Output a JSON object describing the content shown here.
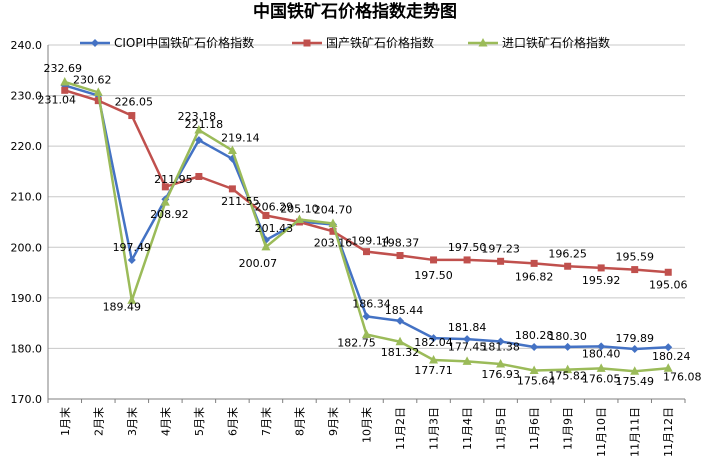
{
  "chart_data": {
    "type": "line",
    "title": "中国铁矿石价格指数走势图",
    "xlabel": "",
    "ylabel": "",
    "ylim": [
      170,
      240
    ],
    "yticks": [
      "170.0",
      "180.0",
      "190.0",
      "200.0",
      "210.0",
      "220.0",
      "230.0",
      "240.0"
    ],
    "grid": "horizontal",
    "legend_position": "top",
    "categories": [
      "1月末",
      "2月末",
      "3月末",
      "4月末",
      "5月末",
      "6月末",
      "7月末",
      "8月末",
      "9月末",
      "10月末",
      "11月2日",
      "11月3日",
      "11月4日",
      "11月5日",
      "11月6日",
      "11月9日",
      "11月10日",
      "11月11日",
      "11月12日"
    ],
    "series": [
      {
        "name": "CIOPI中国铁矿石价格指数",
        "color": "#4472C4",
        "marker": "diamond",
        "values": [
          232.0,
          230.0,
          197.49,
          209.5,
          221.18,
          217.5,
          201.43,
          205.1,
          204.5,
          186.34,
          185.44,
          182.04,
          181.84,
          181.38,
          180.28,
          180.3,
          180.4,
          179.89,
          180.24
        ],
        "labels": [
          "",
          "",
          "197.49",
          "",
          "221.18",
          "",
          "201.43",
          "205.10",
          "",
          "186.34",
          "185.44",
          "182.04",
          "181.84",
          "181.38",
          "180.28",
          "180.30",
          "180.40",
          "179.89",
          "180.24"
        ]
      },
      {
        "name": "国产铁矿石价格指数",
        "color": "#C0504D",
        "marker": "square",
        "values": [
          231.04,
          229.0,
          226.05,
          211.95,
          214.0,
          211.55,
          206.29,
          205.0,
          203.16,
          199.14,
          198.37,
          197.5,
          197.5,
          197.23,
          196.82,
          196.25,
          195.92,
          195.59,
          195.06
        ],
        "labels": [
          "231.04",
          "",
          "226.05",
          "211.95",
          "",
          "211.55",
          "206.29",
          "",
          "203.16",
          "199.14",
          "198.37",
          "197.50",
          "197.50",
          "197.23",
          "196.82",
          "196.25",
          "195.92",
          "195.59",
          "195.06"
        ]
      },
      {
        "name": "进口铁矿石价格指数",
        "color": "#9BBB59",
        "marker": "triangle",
        "values": [
          232.69,
          230.62,
          189.49,
          208.92,
          223.18,
          219.14,
          200.07,
          205.5,
          204.7,
          182.75,
          181.32,
          177.71,
          177.45,
          176.93,
          175.64,
          175.82,
          176.05,
          175.49,
          176.08
        ],
        "labels": [
          "232.69",
          "230.62",
          "189.49",
          "208.92",
          "223.18",
          "219.14",
          "200.07",
          "",
          "204.70",
          "182.75",
          "181.32",
          "177.71",
          "177.45",
          "176.93",
          "175.64",
          "175.82",
          "176.05",
          "175.49",
          "176.08"
        ]
      }
    ]
  }
}
